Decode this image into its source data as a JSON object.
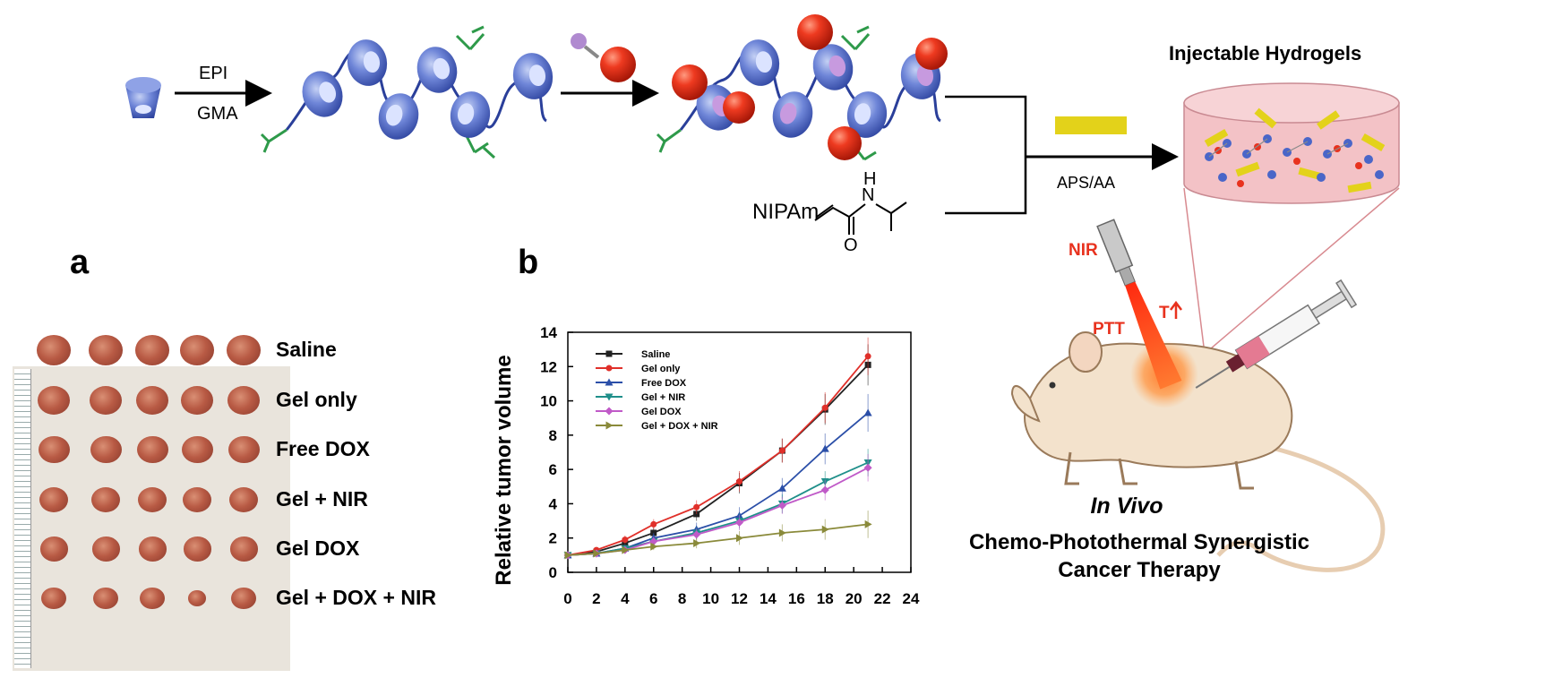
{
  "scheme": {
    "step1_top": "EPI",
    "step1_bottom": "GMA",
    "monomer": "NIPAm",
    "amide_n": "N",
    "amide_h": "H",
    "amide_o": "O",
    "initiator": "APS/AA",
    "product": "Injectable Hydrogels"
  },
  "panel_a": {
    "letter": "a",
    "groups": [
      "Saline",
      "Gel only",
      "Free DOX",
      "Gel + NIR",
      "Gel DOX",
      "Gel + DOX + NIR"
    ]
  },
  "panel_b": {
    "letter": "b"
  },
  "chart_data": {
    "type": "line",
    "title": "",
    "xlabel": "",
    "ylabel": "Relative tumor volume",
    "xlim": [
      0,
      24
    ],
    "ylim": [
      0,
      14
    ],
    "xticks": [
      0,
      2,
      4,
      6,
      8,
      10,
      12,
      14,
      16,
      18,
      20,
      22,
      24
    ],
    "yticks": [
      0,
      2,
      4,
      6,
      8,
      10,
      12,
      14
    ],
    "legend_position": "top-left",
    "x": [
      0,
      2,
      4,
      6,
      9,
      12,
      15,
      18,
      21
    ],
    "series": [
      {
        "name": "Saline",
        "color": "#222222",
        "marker": "square",
        "values": [
          1.0,
          1.2,
          1.7,
          2.3,
          3.4,
          5.2,
          7.1,
          9.5,
          12.1
        ],
        "errors": [
          0.1,
          0.15,
          0.2,
          0.3,
          0.4,
          0.6,
          0.7,
          0.9,
          1.2
        ]
      },
      {
        "name": "Gel only",
        "color": "#e0302a",
        "marker": "circle",
        "values": [
          1.0,
          1.3,
          1.9,
          2.8,
          3.8,
          5.3,
          7.1,
          9.6,
          12.6
        ],
        "errors": [
          0.1,
          0.15,
          0.25,
          0.3,
          0.4,
          0.6,
          0.7,
          0.9,
          1.1
        ]
      },
      {
        "name": "Free DOX",
        "color": "#2b4fa8",
        "marker": "triangle-up",
        "values": [
          1.0,
          1.1,
          1.4,
          2.0,
          2.5,
          3.3,
          4.9,
          7.2,
          9.3
        ],
        "errors": [
          0.1,
          0.15,
          0.2,
          0.3,
          0.4,
          0.5,
          0.6,
          0.9,
          1.1
        ]
      },
      {
        "name": "Gel + NIR",
        "color": "#1f8f8a",
        "marker": "triangle-down",
        "values": [
          1.0,
          1.1,
          1.4,
          1.8,
          2.3,
          3.0,
          4.0,
          5.3,
          6.4
        ],
        "errors": [
          0.1,
          0.15,
          0.2,
          0.3,
          0.35,
          0.45,
          0.55,
          0.6,
          0.8
        ]
      },
      {
        "name": "Gel DOX",
        "color": "#c05ac8",
        "marker": "diamond",
        "values": [
          1.0,
          1.1,
          1.3,
          1.8,
          2.2,
          2.9,
          3.9,
          4.8,
          6.1
        ],
        "errors": [
          0.1,
          0.15,
          0.2,
          0.3,
          0.35,
          0.45,
          0.5,
          0.6,
          0.8
        ]
      },
      {
        "name": "Gel + DOX + NIR",
        "color": "#8a8a3a",
        "marker": "triangle-right",
        "values": [
          1.0,
          1.1,
          1.3,
          1.5,
          1.7,
          2.0,
          2.3,
          2.5,
          2.8
        ],
        "errors": [
          0.1,
          0.1,
          0.15,
          0.2,
          0.3,
          0.4,
          0.5,
          0.6,
          0.8
        ]
      }
    ]
  },
  "therapy": {
    "nir": "NIR",
    "ptt": "PTT",
    "temp": "T",
    "in_vivo": "In Vivo",
    "caption_line1": "Chemo-Photothermal Synergistic",
    "caption_line2": "Cancer Therapy"
  },
  "colors": {
    "cd_blue": "#4a66c8",
    "drug_red": "#e8321e",
    "chain_green": "#2e9a4a",
    "photothermal_yellow": "#e3d21a",
    "gel_pink": "#f3c2c6",
    "laser_red": "#f04a1e"
  }
}
